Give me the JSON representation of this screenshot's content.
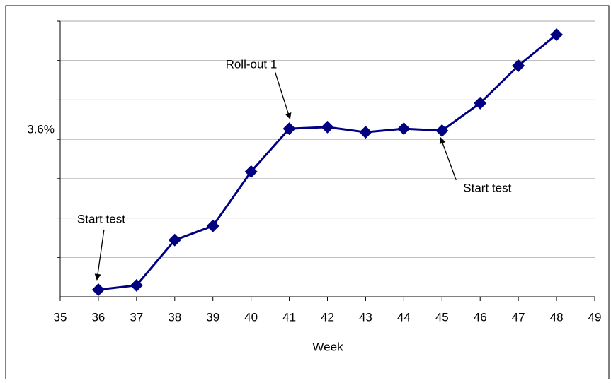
{
  "chart_data": {
    "type": "line",
    "x_label": "Week",
    "x": [
      36,
      37,
      38,
      39,
      40,
      41,
      42,
      43,
      44,
      45,
      46,
      47,
      48
    ],
    "series": [
      {
        "color": "#000080",
        "values": [
          3.218,
          3.229,
          3.344,
          3.38,
          3.518,
          3.627,
          3.631,
          3.618,
          3.627,
          3.622,
          3.692,
          3.787,
          3.866
        ]
      }
    ],
    "xlim": [
      35,
      49
    ],
    "xticks": [
      35,
      36,
      37,
      38,
      39,
      40,
      41,
      42,
      43,
      44,
      45,
      46,
      47,
      48,
      49
    ],
    "ylim": [
      3.2,
      3.9
    ],
    "yticks": [
      {
        "value": 3.6,
        "label": "3.6%"
      }
    ],
    "ygrid": [
      3.3,
      3.4,
      3.5,
      3.6,
      3.7,
      3.8,
      3.9
    ],
    "annotations": [
      {
        "text": "Start test",
        "x": 36
      },
      {
        "text": "Roll-out 1",
        "x": 41
      },
      {
        "text": "Start test",
        "x": 45
      }
    ]
  }
}
